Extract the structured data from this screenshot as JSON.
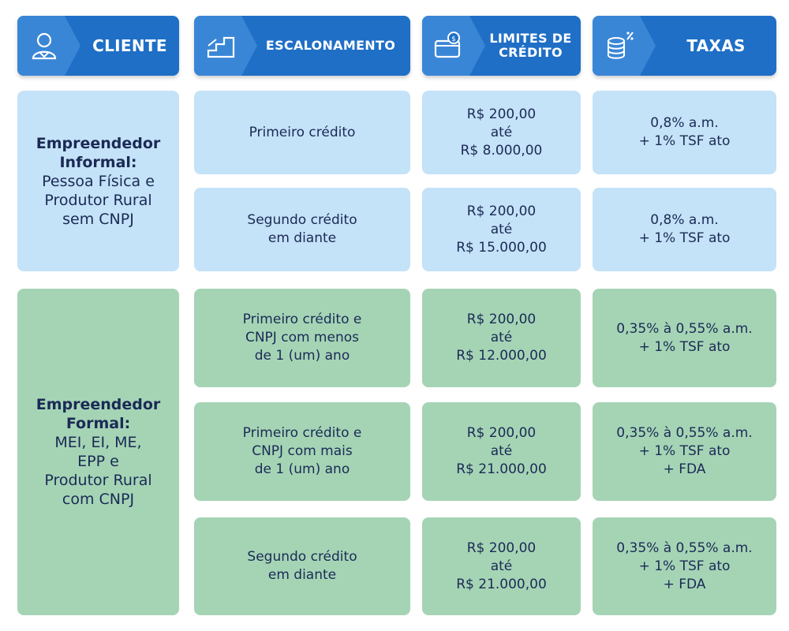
{
  "header": {
    "cliente": "CLIENTE",
    "escalonamento": "ESCALONAMENTO",
    "limites": "LIMITES DE\nCRÉDITO",
    "taxas": "TAXAS"
  },
  "icons": [
    "person-icon",
    "stairs-icon",
    "credit-card-dollar-icon",
    "coins-percent-icon"
  ],
  "colors": {
    "header": "#1f6fc6",
    "informal": "#c4e2f8",
    "formal": "#a5d4b5",
    "text": "#1b2a55"
  },
  "groups": [
    {
      "client_bold": "Empreendedor\nInformal:",
      "client_text": "Pessoa Física e\nProdutor Rural\nsem CNPJ",
      "rows": [
        {
          "escalonamento": "Primeiro crédito",
          "limite": "R$ 200,00\naté\nR$ 8.000,00",
          "taxa": "0,8% a.m.\n+ 1% TSF ato"
        },
        {
          "escalonamento": "Segundo crédito\nem diante",
          "limite": "R$ 200,00\naté\nR$ 15.000,00",
          "taxa": "0,8% a.m.\n+ 1% TSF ato"
        }
      ]
    },
    {
      "client_bold": "Empreendedor\nFormal:",
      "client_text": "MEI, EI, ME,\nEPP e\nProdutor Rural\ncom CNPJ",
      "rows": [
        {
          "escalonamento": "Primeiro crédito e\nCNPJ com menos\nde 1 (um) ano",
          "limite": "R$ 200,00\naté\nR$ 12.000,00",
          "taxa": "0,35% à 0,55% a.m.\n+ 1% TSF ato"
        },
        {
          "escalonamento": "Primeiro crédito e\nCNPJ com mais\nde 1 (um) ano",
          "limite": "R$ 200,00\naté\nR$ 21.000,00",
          "taxa": "0,35% à 0,55% a.m.\n+ 1% TSF ato\n+ FDA"
        },
        {
          "escalonamento": "Segundo crédito\nem diante",
          "limite": "R$ 200,00\naté\nR$ 21.000,00",
          "taxa": "0,35% à 0,55% a.m.\n+ 1% TSF ato\n+ FDA"
        }
      ]
    }
  ]
}
